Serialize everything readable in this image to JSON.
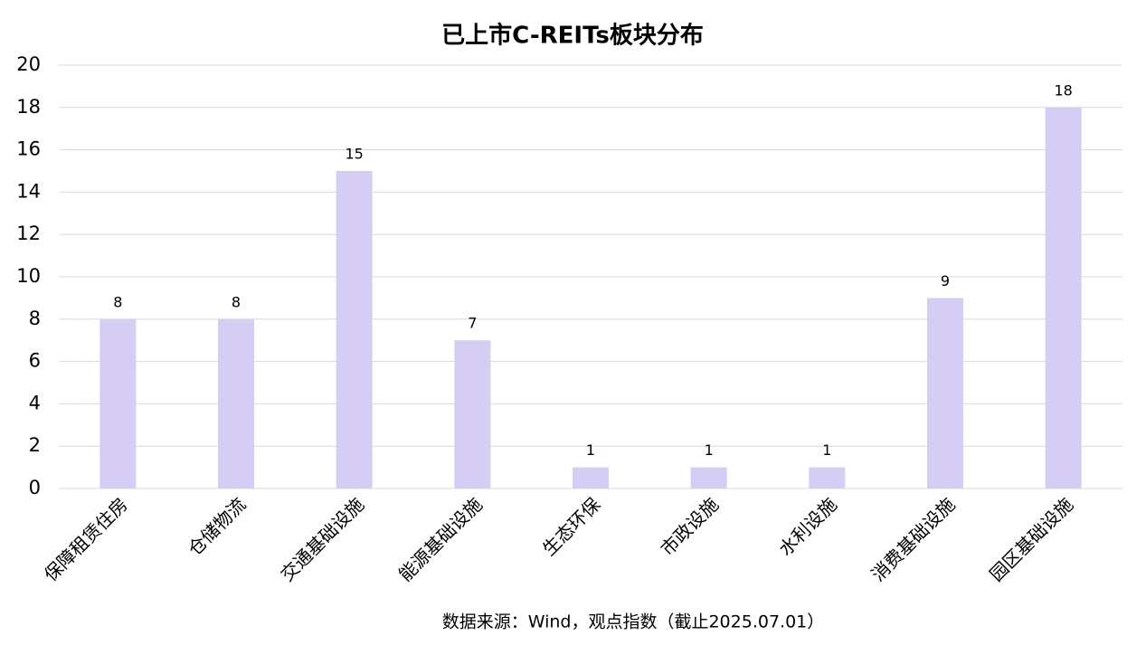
{
  "chart_data": {
    "type": "bar",
    "title": "已上市C-REITs板块分布",
    "categories": [
      "保障租赁住房",
      "仓储物流",
      "交通基础设施",
      "能源基础设施",
      "生态环保",
      "市政设施",
      "水利设施",
      "消费基础设施",
      "园区基础设施"
    ],
    "values": [
      8,
      8,
      15,
      7,
      1,
      1,
      1,
      9,
      18
    ],
    "color": "#d5cdf3",
    "ylim": [
      0,
      20
    ],
    "yticks": [
      0,
      2,
      4,
      6,
      8,
      10,
      12,
      14,
      16,
      18,
      20
    ],
    "grid": true,
    "note": "数据来源：Wind，观点指数（截止2025.07.01）"
  }
}
